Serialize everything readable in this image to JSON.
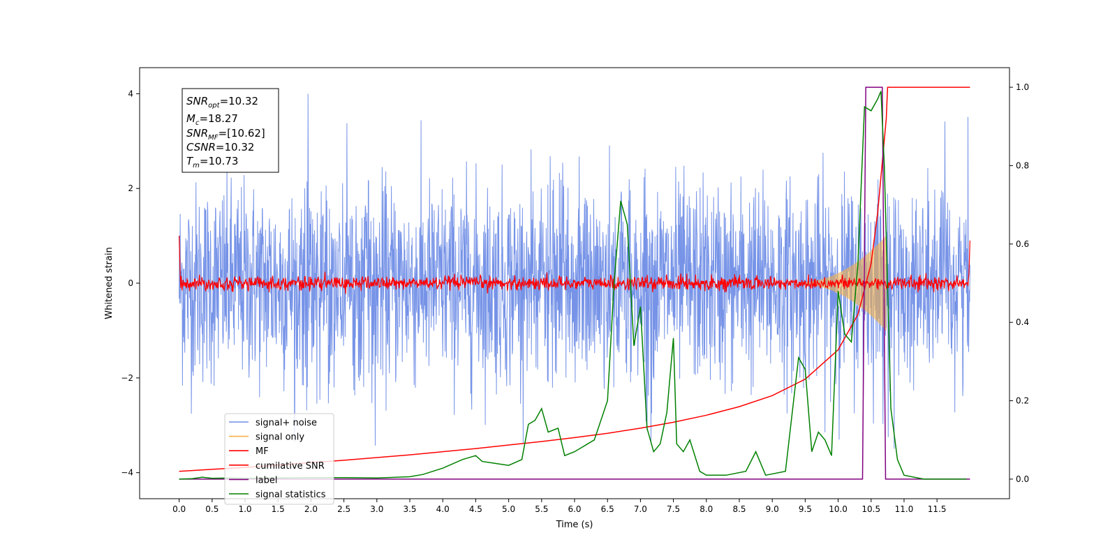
{
  "chart_data": {
    "type": "line",
    "xlabel": "Time (s)",
    "ylabel": "Whitened strain",
    "xlim": [
      -0.6,
      12.6
    ],
    "ylim": [
      -4.55,
      4.55
    ],
    "y2lim": [
      -0.05,
      1.05
    ],
    "xticks": [
      "0.0",
      "0.5",
      "1.0",
      "1.5",
      "2.0",
      "2.5",
      "3.0",
      "3.5",
      "4.0",
      "4.5",
      "5.0",
      "5.5",
      "6.0",
      "6.5",
      "7.0",
      "7.5",
      "8.0",
      "8.5",
      "9.0",
      "9.5",
      "10.0",
      "10.5",
      "11.0",
      "11.5"
    ],
    "yticks": [
      "4",
      "2",
      "0",
      "−2",
      "−4"
    ],
    "y2ticks": [
      "1.0",
      "0.8",
      "0.6",
      "0.4",
      "0.2",
      "0.0"
    ],
    "grid": false,
    "legend_position": "lower-left",
    "annotation": {
      "snr_opt": {
        "sym": "SNR",
        "sub": "opt",
        "value": "=10.32"
      },
      "mc": {
        "sym": "M",
        "sub": "c",
        "value": "=18.27"
      },
      "snr_mf": {
        "sym": "SNR",
        "sub": "MF",
        "value": "=[10.62]"
      },
      "csnr": {
        "sym": "CSNR",
        "sub": "",
        "value": "=10.32"
      },
      "tm": {
        "sym": "T",
        "sub": "m",
        "value": "=10.73"
      }
    },
    "series": [
      {
        "name": "signal+ noise",
        "color": "#6f8de6",
        "axis": "left",
        "description_range": [
          -3.5,
          4.15
        ],
        "x_range": [
          0,
          12.0
        ]
      },
      {
        "name": "signal only",
        "color": "#f5b14a",
        "axis": "left",
        "chirp_end": 10.73,
        "max_amplitude": 1.0
      },
      {
        "name": "MF",
        "color": "#ff0000",
        "axis": "left",
        "noise_amplitude": 0.12
      },
      {
        "name": "cumilative SNR",
        "color": "#ff0000",
        "axis": "right",
        "x": [
          0.0,
          0.5,
          1.0,
          1.5,
          2.0,
          2.5,
          3.0,
          3.5,
          4.0,
          4.5,
          5.0,
          5.5,
          6.0,
          6.5,
          7.0,
          7.5,
          8.0,
          8.5,
          9.0,
          9.5,
          10.0,
          10.3,
          10.5,
          10.6,
          10.73,
          10.75,
          12.0
        ],
        "values": [
          0.02,
          0.025,
          0.03,
          0.036,
          0.042,
          0.048,
          0.055,
          0.062,
          0.07,
          0.078,
          0.087,
          0.096,
          0.106,
          0.117,
          0.13,
          0.145,
          0.163,
          0.185,
          0.213,
          0.255,
          0.33,
          0.42,
          0.55,
          0.68,
          0.92,
          1.0,
          1.0
        ]
      },
      {
        "name": "label",
        "color": "#800080",
        "axis": "right",
        "x": [
          0.0,
          10.37,
          10.42,
          10.67,
          10.72,
          12.0
        ],
        "values": [
          0.0,
          0.0,
          1.0,
          1.0,
          0.0,
          0.0
        ]
      },
      {
        "name": "signal statistics",
        "color": "#008000",
        "axis": "right",
        "x": [
          0.0,
          0.2,
          0.35,
          0.5,
          0.8,
          1.0,
          1.5,
          2.0,
          2.5,
          3.0,
          3.5,
          3.7,
          4.0,
          4.3,
          4.5,
          4.6,
          4.8,
          5.0,
          5.2,
          5.3,
          5.4,
          5.5,
          5.6,
          5.75,
          5.85,
          6.0,
          6.1,
          6.2,
          6.3,
          6.5,
          6.6,
          6.7,
          6.8,
          6.9,
          7.0,
          7.1,
          7.2,
          7.3,
          7.4,
          7.5,
          7.55,
          7.65,
          7.75,
          7.9,
          8.0,
          8.3,
          8.6,
          8.75,
          8.9,
          9.2,
          9.4,
          9.5,
          9.6,
          9.7,
          9.8,
          9.9,
          10.0,
          10.1,
          10.2,
          10.3,
          10.4,
          10.5,
          10.6,
          10.65,
          10.7,
          10.8,
          10.9,
          11.0,
          11.3,
          11.5,
          11.7,
          11.95
        ],
        "values": [
          0.0,
          0.001,
          0.005,
          0.002,
          0.003,
          0.002,
          0.003,
          0.004,
          0.004,
          0.003,
          0.006,
          0.012,
          0.028,
          0.05,
          0.06,
          0.045,
          0.04,
          0.035,
          0.05,
          0.14,
          0.15,
          0.18,
          0.12,
          0.13,
          0.06,
          0.07,
          0.08,
          0.09,
          0.1,
          0.2,
          0.5,
          0.71,
          0.65,
          0.34,
          0.44,
          0.13,
          0.07,
          0.09,
          0.17,
          0.36,
          0.09,
          0.07,
          0.1,
          0.02,
          0.01,
          0.01,
          0.02,
          0.07,
          0.01,
          0.02,
          0.31,
          0.28,
          0.07,
          0.12,
          0.1,
          0.06,
          0.48,
          0.37,
          0.35,
          0.55,
          0.95,
          0.94,
          0.97,
          0.99,
          0.8,
          0.18,
          0.05,
          0.01,
          0.0,
          0.0,
          0.0,
          0.0
        ]
      }
    ]
  }
}
